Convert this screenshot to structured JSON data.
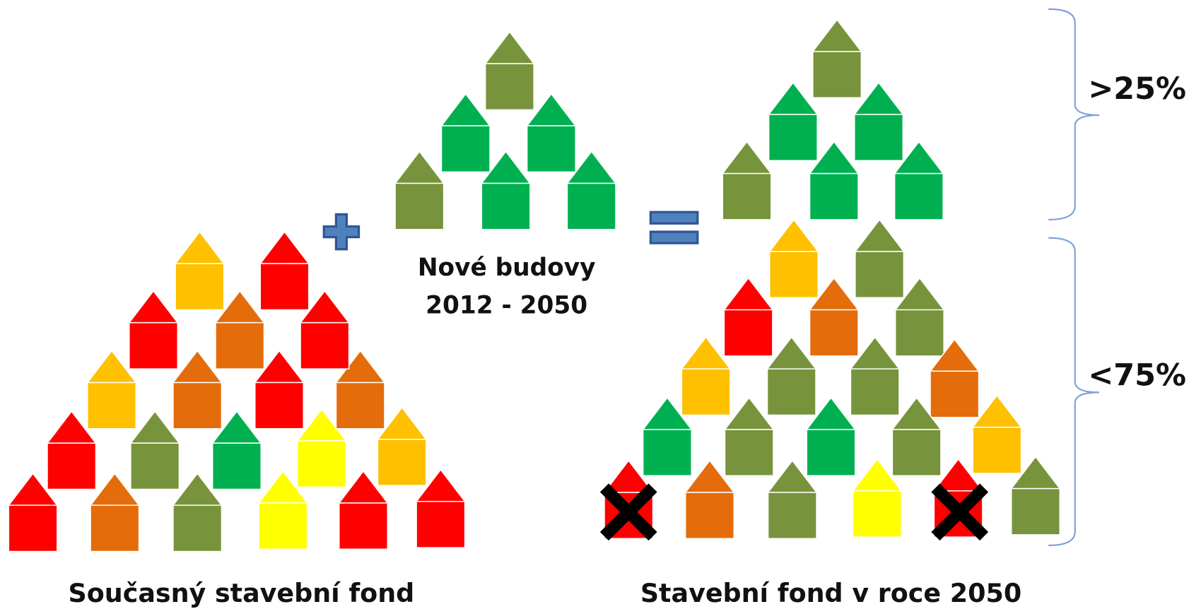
{
  "new_buildings": {
    "label": "Nové budovy",
    "period": "2012 - 2050"
  },
  "current_stock": {
    "label": "Současný stavební fond"
  },
  "stock_2050": {
    "label": "Stavební fond v roce 2050"
  },
  "share_new": ">25%",
  "share_existing": "<75%"
}
